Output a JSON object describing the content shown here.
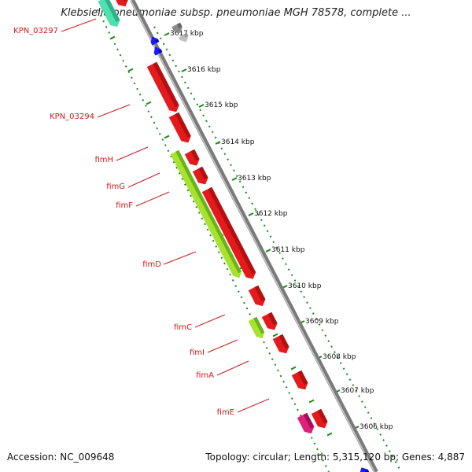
{
  "title": "Klebsiella pneumoniae subsp. pneumoniae MGH 78578, complete ...",
  "footer": {
    "accession": "Accession: NC_009648",
    "topology": "Topology: circular; Length: 5,315,120 bp; Genes: 4,887"
  },
  "colors": {
    "gene_red": "#e41a1c",
    "fim_green_light": "#a6e22e",
    "fim_green_dark": "#3a8a12",
    "blue": "#1a1aff",
    "gray": "#8a8a8a",
    "magenta": "#e0207a",
    "teal": "#4fe0b0",
    "label_red": "#d11a1a",
    "scale_green": "#1a8a1a"
  },
  "scale": {
    "unit": "kbp",
    "ticks": [
      "3617 kbp",
      "3616 kbp",
      "3615 kbp",
      "3614 kbp",
      "3613 kbp",
      "3612 kbp",
      "3611 kbp",
      "3610 kbp",
      "3609 kbp",
      "3608 kbp",
      "3607 kbp",
      "3606 kbp"
    ]
  },
  "gene_labels": [
    "KPN_03297",
    "KPN_03294",
    "fimH",
    "fimG",
    "fimF",
    "fimD",
    "fimC",
    "fimI",
    "fimA",
    "fimE"
  ]
}
